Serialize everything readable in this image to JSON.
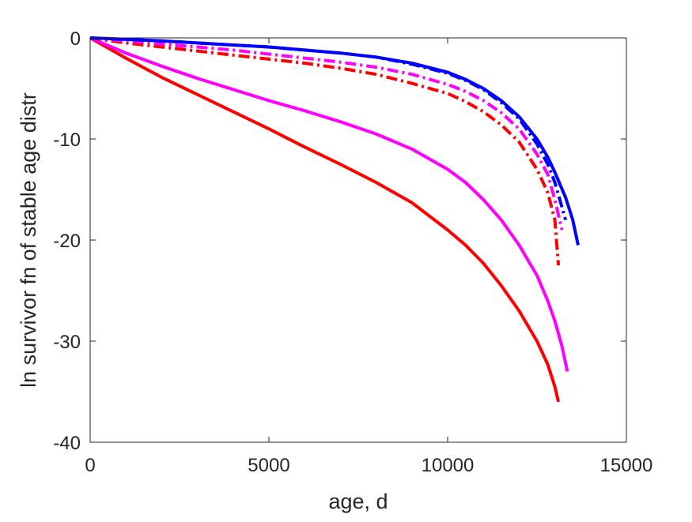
{
  "chart_data": {
    "type": "line",
    "title": "",
    "xlabel": "age, d",
    "ylabel": "ln survivor fn of stable age distr",
    "xlim": [
      0,
      15000
    ],
    "ylim": [
      -40,
      0
    ],
    "xticks": [
      0,
      5000,
      10000,
      15000
    ],
    "xtick_labels": [
      "0",
      "5000",
      "10000",
      "15000"
    ],
    "yticks": [
      0,
      -10,
      -20,
      -30,
      -40
    ],
    "ytick_labels": [
      "0",
      "-10",
      "-20",
      "-30",
      "-40"
    ],
    "grid": false,
    "legend": "none",
    "series": [
      {
        "color": "#ff0000",
        "line_style": "solid",
        "x": [
          0,
          1000,
          2000,
          3000,
          4000,
          5000,
          6000,
          7000,
          8000,
          9000,
          10000,
          10500,
          11000,
          11500,
          12000,
          12500,
          12800,
          13000,
          13100
        ],
        "y": [
          0,
          -2.0,
          -3.9,
          -5.6,
          -7.3,
          -9.0,
          -10.8,
          -12.5,
          -14.3,
          -16.3,
          -19.0,
          -20.5,
          -22.3,
          -24.5,
          -27.0,
          -30.0,
          -32.3,
          -34.5,
          -36.0
        ]
      },
      {
        "color": "#ff00ff",
        "line_style": "solid",
        "x": [
          0,
          1000,
          2000,
          3000,
          4000,
          5000,
          6000,
          7000,
          8000,
          9000,
          10000,
          10500,
          11000,
          11500,
          12000,
          12500,
          12800,
          13000,
          13200,
          13350
        ],
        "y": [
          0,
          -1.5,
          -2.8,
          -4.0,
          -5.1,
          -6.2,
          -7.2,
          -8.3,
          -9.5,
          -11.0,
          -13.0,
          -14.3,
          -16.0,
          -18.0,
          -20.5,
          -23.5,
          -26.0,
          -28.0,
          -30.5,
          -33.0
        ]
      },
      {
        "color": "#ff0000",
        "line_style": "dash-dot",
        "x": [
          0,
          1000,
          2000,
          3000,
          4000,
          5000,
          6000,
          7000,
          8000,
          9000,
          10000,
          10500,
          11000,
          11500,
          12000,
          12500,
          12800,
          13000,
          13100
        ],
        "y": [
          0,
          -0.5,
          -0.9,
          -1.3,
          -1.7,
          -2.1,
          -2.5,
          -3.0,
          -3.6,
          -4.5,
          -5.5,
          -6.3,
          -7.3,
          -8.6,
          -10.3,
          -13.0,
          -15.3,
          -18.0,
          -22.5
        ]
      },
      {
        "color": "#ff00ff",
        "line_style": "dash-dot",
        "x": [
          0,
          1000,
          2000,
          3000,
          4000,
          5000,
          6000,
          7000,
          8000,
          9000,
          10000,
          10500,
          11000,
          11500,
          12000,
          12500,
          12800,
          13000,
          13200
        ],
        "y": [
          0,
          -0.3,
          -0.6,
          -0.9,
          -1.2,
          -1.6,
          -2.0,
          -2.4,
          -2.9,
          -3.6,
          -4.6,
          -5.3,
          -6.2,
          -7.4,
          -9.0,
          -11.5,
          -13.5,
          -16.0,
          -19.0
        ]
      },
      {
        "color": "#0000ff",
        "line_style": "dash-dot",
        "x": [
          0,
          1000,
          2000,
          3000,
          4000,
          5000,
          6000,
          7000,
          8000,
          9000,
          10000,
          10500,
          11000,
          11500,
          12000,
          12500,
          12800,
          13000,
          13300
        ],
        "y": [
          0,
          -0.15,
          -0.3,
          -0.5,
          -0.7,
          -0.9,
          -1.2,
          -1.5,
          -1.9,
          -2.6,
          -3.5,
          -4.2,
          -5.1,
          -6.4,
          -8.0,
          -10.5,
          -12.5,
          -14.3,
          -18.0
        ]
      },
      {
        "color": "#0000ff",
        "line_style": "solid",
        "x": [
          0,
          1000,
          2000,
          3000,
          4000,
          5000,
          6000,
          7000,
          8000,
          9000,
          10000,
          10500,
          11000,
          11500,
          12000,
          12500,
          12800,
          13000,
          13300,
          13500,
          13650
        ],
        "y": [
          0,
          -0.15,
          -0.3,
          -0.5,
          -0.7,
          -0.9,
          -1.2,
          -1.5,
          -1.9,
          -2.5,
          -3.4,
          -4.1,
          -5.0,
          -6.2,
          -7.8,
          -10.0,
          -11.8,
          -13.3,
          -15.8,
          -18.0,
          -20.5
        ]
      }
    ]
  }
}
